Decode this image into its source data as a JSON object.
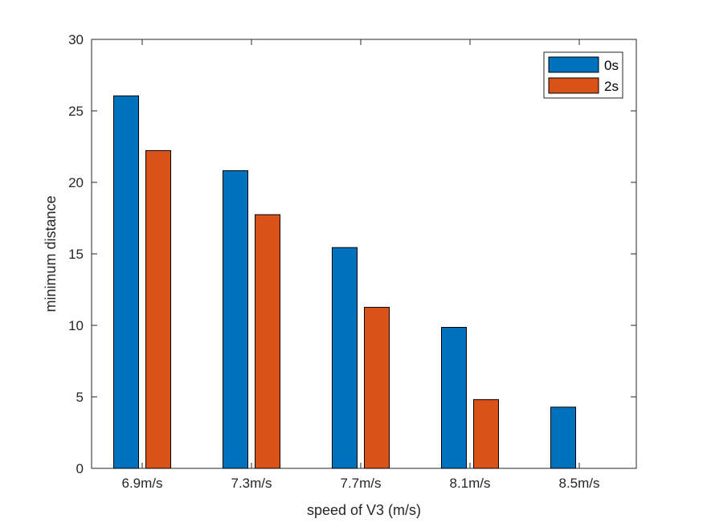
{
  "chart_data": {
    "type": "bar",
    "categories": [
      "6.9m/s",
      "7.3m/s",
      "7.7m/s",
      "8.1m/s",
      "8.5m/s"
    ],
    "series": [
      {
        "name": "0s",
        "color": "#0072BD",
        "values": [
          26.05,
          20.82,
          15.44,
          9.86,
          4.28
        ]
      },
      {
        "name": "2s",
        "color": "#D95319",
        "values": [
          22.22,
          17.74,
          11.26,
          4.81,
          0
        ]
      }
    ],
    "xlabel": "speed of V3 (m/s)",
    "ylabel": "minimum distance",
    "ylim": [
      0,
      30
    ],
    "yticks": [
      0,
      5,
      10,
      15,
      20,
      25,
      30
    ],
    "grid": false,
    "legend_position": "top-right"
  }
}
